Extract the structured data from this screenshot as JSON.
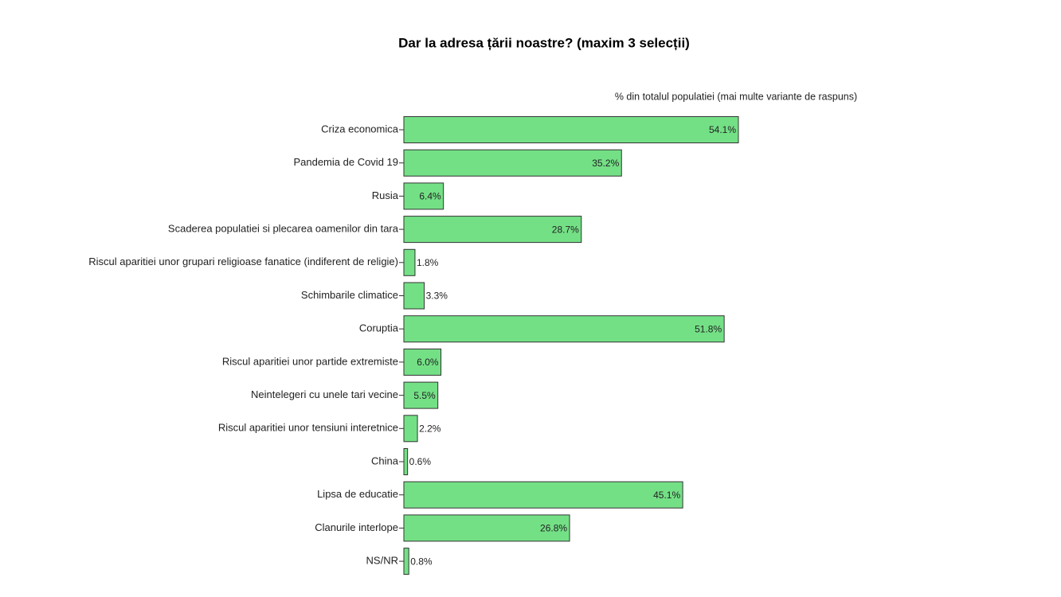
{
  "chart_data": {
    "type": "bar",
    "orientation": "horizontal",
    "title": "Dar la adresa țării noastre? (maxim 3 selecții)",
    "subtitle": "% din totalul populatiei (mai multe variante de raspuns)",
    "categories": [
      "Criza economica",
      "Pandemia de Covid 19",
      "Rusia",
      "Scaderea populatiei si plecarea oamenilor din tara",
      "Riscul aparitiei unor grupari religioase fanatice (indiferent de religie)",
      "Schimbarile climatice",
      "Coruptia",
      "Riscul aparitiei unor partide extremiste",
      "Neintelegeri cu unele tari vecine",
      "Riscul aparitiei unor tensiuni interetnice",
      "China",
      "Lipsa de educatie",
      "Clanurile interlope",
      "NS/NR"
    ],
    "values": [
      54.1,
      35.2,
      6.4,
      28.7,
      1.8,
      3.3,
      51.8,
      6.0,
      5.5,
      2.2,
      0.6,
      45.1,
      26.8,
      0.8
    ],
    "value_labels": [
      "54.1%",
      "35.2%",
      "6.4%",
      "28.7%",
      "1.8%",
      "3.3%",
      "51.8%",
      "6.0%",
      "5.5%",
      "2.2%",
      "0.6%",
      "45.1%",
      "26.8%",
      "0.8%"
    ],
    "color": "#74e086"
  }
}
